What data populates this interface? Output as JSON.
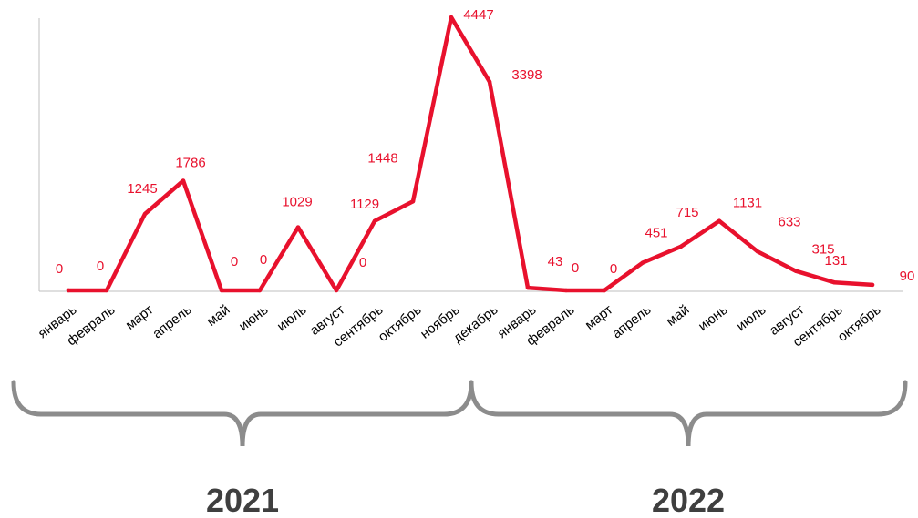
{
  "chart_data": {
    "type": "line",
    "categories": [
      "январь",
      "февраль",
      "март",
      "апрель",
      "май",
      "июнь",
      "июль",
      "август",
      "сентябрь",
      "октябрь",
      "ноябрь",
      "декабрь",
      "январь",
      "февраль",
      "март",
      "апрель",
      "май",
      "июнь",
      "июль",
      "август",
      "сентябрь",
      "октябрь"
    ],
    "series": [
      {
        "values": [
          0,
          0,
          1245,
          1786,
          0,
          0,
          1029,
          0,
          1129,
          1448,
          4447,
          3398,
          43,
          0,
          0,
          451,
          715,
          1131,
          633,
          315,
          131,
          90
        ]
      }
    ],
    "ylim": [
      0,
      4447
    ],
    "grid": false,
    "groups": [
      {
        "label": "2021",
        "from": 0,
        "to": 11
      },
      {
        "label": "2022",
        "from": 12,
        "to": 21
      }
    ],
    "colors": {
      "line": "#e8112d",
      "labels": "#e8112d",
      "axis": "#bfbfbf",
      "brace": "#8c8c8c",
      "year": "#3f3f3f"
    }
  }
}
